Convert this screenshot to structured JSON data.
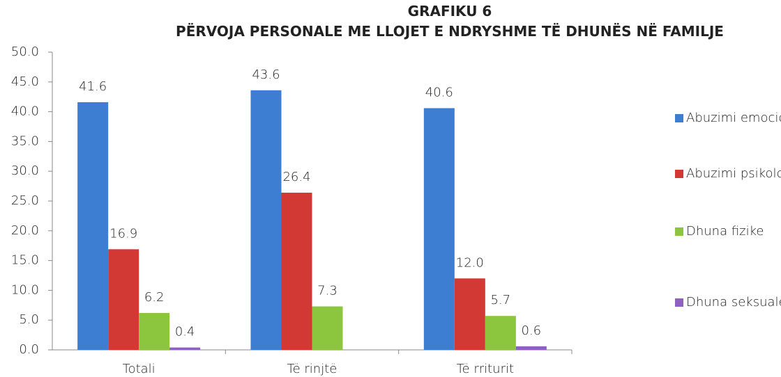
{
  "chart_data": {
    "type": "bar",
    "title": "GRAFIKU 6",
    "subtitle": "PËRVOJA PERSONALE ME LLOJET E NDRYSHME TË DHUNËS NË FAMILJE",
    "categories": [
      "Totali",
      "Të rinjtë",
      "Të rriturit"
    ],
    "series": [
      {
        "name": "Abuzimi emocional",
        "color": "#3d7dd2",
        "values": [
          41.6,
          43.6,
          40.6
        ]
      },
      {
        "name": "Abuzimi psikologjik",
        "color": "#d23935",
        "values": [
          16.9,
          26.4,
          12.0
        ],
        "value_labels": [
          "16.9",
          "26.4",
          "12.0"
        ]
      },
      {
        "name": "Dhuna fizike",
        "color": "#8cc63e",
        "values": [
          6.2,
          7.3,
          5.7
        ]
      },
      {
        "name": "Dhuna seksuale",
        "color": "#8f5fc2",
        "values": [
          0.4,
          null,
          0.6
        ]
      }
    ],
    "ylim": [
      0,
      50
    ],
    "yticks": [
      {
        "value": 0,
        "label": "0.0"
      },
      {
        "value": 5,
        "label": "5.0"
      },
      {
        "value": 10,
        "label": "10.0"
      },
      {
        "value": 15,
        "label": "15.0"
      },
      {
        "value": 20,
        "label": "20.0"
      },
      {
        "value": 25,
        "label": "25.0"
      },
      {
        "value": 30,
        "label": "30.0"
      },
      {
        "value": 35,
        "label": "35.0"
      },
      {
        "value": 40,
        "label": "40.0"
      },
      {
        "value": 45,
        "label": "45.0"
      },
      {
        "value": 50,
        "label": "50.0"
      }
    ],
    "grid": false,
    "legend": "right"
  }
}
